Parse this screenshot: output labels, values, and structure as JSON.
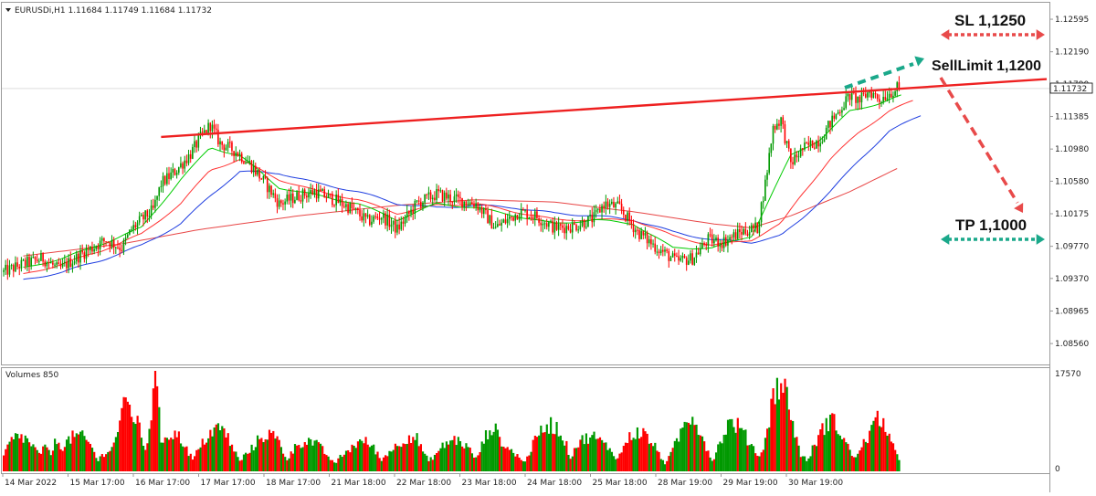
{
  "header": {
    "symbol_line": "EURUSDi,H1  1.11684 1.11749 1.11684 1.11732"
  },
  "volume_panel": {
    "label": "Volumes 850",
    "ytick_max": "17570",
    "ytick_min": "0"
  },
  "annotations": {
    "sl": "SL 1,1250",
    "sell_limit": "SellLimit 1,1200",
    "tp": "TP 1,1000"
  },
  "colors": {
    "bull": "#009900",
    "bear": "#ff0000",
    "ma_fast": "#00cc00",
    "ma_mid": "#ff3333",
    "ma_slow": "#1f3ee0",
    "ma_long": "#e84646",
    "trendline": "#ee2020",
    "sl_arrow": "#e84a4a",
    "tp_arrow": "#1aa88a"
  },
  "chart_data": {
    "type": "candlestick",
    "symbol": "EURUSDi",
    "timeframe": "H1",
    "current_price": "1.11732",
    "ylim": [
      1.083,
      1.128
    ],
    "y_ticks": [
      "1.12595",
      "1.12190",
      "1.11790",
      "1.11385",
      "1.10980",
      "1.10580",
      "1.10175",
      "1.09770",
      "1.09370",
      "1.08965",
      "1.08560"
    ],
    "y_tick_values": [
      1.12595,
      1.1219,
      1.1179,
      1.11385,
      1.1098,
      1.1058,
      1.10175,
      1.0977,
      1.0937,
      1.08965,
      1.0856
    ],
    "x_ticks": [
      "14 Mar 2022",
      "15 Mar 17:00",
      "16 Mar 17:00",
      "17 Mar 17:00",
      "18 Mar 17:00",
      "21 Mar 18:00",
      "22 Mar 18:00",
      "23 Mar 18:00",
      "24 Mar 18:00",
      "25 Mar 18:00",
      "28 Mar 19:00",
      "29 Mar 19:00",
      "30 Mar 19:00"
    ],
    "price_anchors": [
      [
        0,
        1.0945
      ],
      [
        10,
        1.0955
      ],
      [
        20,
        1.0962
      ],
      [
        28,
        1.0948
      ],
      [
        40,
        1.0968
      ],
      [
        52,
        1.0985
      ],
      [
        60,
        1.0975
      ],
      [
        65,
        1.0998
      ],
      [
        70,
        1.101
      ],
      [
        76,
        1.1022
      ],
      [
        80,
        1.1055
      ],
      [
        87,
        1.107
      ],
      [
        95,
        1.1092
      ],
      [
        100,
        1.1112
      ],
      [
        105,
        1.1128
      ],
      [
        110,
        1.1105
      ],
      [
        118,
        1.1095
      ],
      [
        125,
        1.108
      ],
      [
        133,
        1.1055
      ],
      [
        140,
        1.103
      ],
      [
        150,
        1.104
      ],
      [
        158,
        1.1045
      ],
      [
        168,
        1.1035
      ],
      [
        176,
        1.1025
      ],
      [
        185,
        1.1008
      ],
      [
        192,
        1.1015
      ],
      [
        200,
        1.0998
      ],
      [
        210,
        1.103
      ],
      [
        220,
        1.1042
      ],
      [
        230,
        1.1035
      ],
      [
        240,
        1.103
      ],
      [
        250,
        1.1
      ],
      [
        256,
        1.101
      ],
      [
        262,
        1.102
      ],
      [
        270,
        1.1015
      ],
      [
        280,
        1.1
      ],
      [
        290,
        1.1002
      ],
      [
        300,
        1.1012
      ],
      [
        305,
        1.103
      ],
      [
        313,
        1.1025
      ],
      [
        322,
        1.0995
      ],
      [
        332,
        1.0975
      ],
      [
        342,
        1.0958
      ],
      [
        350,
        1.0962
      ],
      [
        358,
        1.0985
      ],
      [
        365,
        1.0982
      ],
      [
        375,
        1.0995
      ],
      [
        383,
        1.1
      ],
      [
        387,
        1.1055
      ],
      [
        391,
        1.1125
      ],
      [
        395,
        1.1135
      ],
      [
        400,
        1.108
      ],
      [
        406,
        1.1098
      ],
      [
        415,
        1.111
      ],
      [
        420,
        1.113
      ],
      [
        425,
        1.1148
      ],
      [
        430,
        1.1165
      ],
      [
        435,
        1.1158
      ],
      [
        440,
        1.117
      ],
      [
        445,
        1.116
      ],
      [
        450,
        1.1168
      ],
      [
        454,
        1.1173
      ]
    ],
    "ma_fast_anchors": [
      [
        10,
        1.095
      ],
      [
        30,
        1.0962
      ],
      [
        50,
        1.098
      ],
      [
        70,
        1.1
      ],
      [
        90,
        1.106
      ],
      [
        105,
        1.11
      ],
      [
        120,
        1.109
      ],
      [
        140,
        1.105
      ],
      [
        160,
        1.104
      ],
      [
        180,
        1.103
      ],
      [
        200,
        1.101
      ],
      [
        220,
        1.103
      ],
      [
        240,
        1.1025
      ],
      [
        260,
        1.1015
      ],
      [
        280,
        1.1005
      ],
      [
        300,
        1.101
      ],
      [
        320,
        1.1005
      ],
      [
        340,
        1.0975
      ],
      [
        360,
        1.0975
      ],
      [
        380,
        1.099
      ],
      [
        390,
        1.104
      ],
      [
        400,
        1.109
      ],
      [
        415,
        1.111
      ],
      [
        430,
        1.1145
      ],
      [
        445,
        1.1155
      ],
      [
        457,
        1.1165
      ]
    ],
    "ma_mid_anchors": [
      [
        10,
        1.0942
      ],
      [
        30,
        1.0955
      ],
      [
        50,
        1.0972
      ],
      [
        70,
        1.0992
      ],
      [
        90,
        1.103
      ],
      [
        105,
        1.1072
      ],
      [
        120,
        1.1085
      ],
      [
        140,
        1.106
      ],
      [
        160,
        1.1045
      ],
      [
        180,
        1.1035
      ],
      [
        200,
        1.1018
      ],
      [
        220,
        1.1028
      ],
      [
        240,
        1.103
      ],
      [
        260,
        1.102
      ],
      [
        280,
        1.101
      ],
      [
        300,
        1.101
      ],
      [
        320,
        1.101
      ],
      [
        340,
        1.099
      ],
      [
        360,
        1.0978
      ],
      [
        380,
        1.0985
      ],
      [
        395,
        1.1005
      ],
      [
        405,
        1.104
      ],
      [
        420,
        1.1085
      ],
      [
        435,
        1.112
      ],
      [
        450,
        1.1145
      ],
      [
        462,
        1.1158
      ]
    ],
    "ma_slow_anchors": [
      [
        10,
        1.0935
      ],
      [
        30,
        1.0945
      ],
      [
        50,
        1.096
      ],
      [
        70,
        1.0978
      ],
      [
        90,
        1.1005
      ],
      [
        105,
        1.104
      ],
      [
        120,
        1.107
      ],
      [
        140,
        1.1068
      ],
      [
        160,
        1.1055
      ],
      [
        180,
        1.1045
      ],
      [
        200,
        1.103
      ],
      [
        220,
        1.1025
      ],
      [
        240,
        1.1028
      ],
      [
        260,
        1.1025
      ],
      [
        280,
        1.1018
      ],
      [
        300,
        1.1015
      ],
      [
        320,
        1.101
      ],
      [
        340,
        1.0995
      ],
      [
        360,
        1.0985
      ],
      [
        380,
        1.0982
      ],
      [
        395,
        1.099
      ],
      [
        405,
        1.101
      ],
      [
        420,
        1.1045
      ],
      [
        435,
        1.1085
      ],
      [
        450,
        1.112
      ],
      [
        466,
        1.114
      ]
    ],
    "ma_long_anchors": [
      [
        10,
        1.0965
      ],
      [
        60,
        1.098
      ],
      [
        100,
        1.0998
      ],
      [
        150,
        1.1015
      ],
      [
        200,
        1.1028
      ],
      [
        240,
        1.1035
      ],
      [
        280,
        1.1032
      ],
      [
        320,
        1.102
      ],
      [
        360,
        1.1005
      ],
      [
        380,
        1.1
      ],
      [
        400,
        1.1015
      ],
      [
        430,
        1.1045
      ],
      [
        455,
        1.1075
      ]
    ],
    "trendline": {
      "from": [
        80,
        1.1113
      ],
      "to": [
        530,
        1.1185
      ]
    },
    "volume_anchors": [
      [
        0,
        8000
      ],
      [
        10,
        5000
      ],
      [
        18,
        3000
      ],
      [
        25,
        9500
      ],
      [
        30,
        4500
      ],
      [
        45,
        6000
      ],
      [
        55,
        3800
      ],
      [
        62,
        10000
      ],
      [
        72,
        11000
      ],
      [
        77,
        17570
      ],
      [
        80,
        5000
      ],
      [
        90,
        6000
      ],
      [
        100,
        5500
      ],
      [
        112,
        6500
      ],
      [
        125,
        4000
      ],
      [
        140,
        6500
      ],
      [
        150,
        5000
      ],
      [
        160,
        4000
      ],
      [
        175,
        3500
      ],
      [
        190,
        5500
      ],
      [
        200,
        4000
      ],
      [
        210,
        6000
      ],
      [
        220,
        4000
      ],
      [
        235,
        5000
      ],
      [
        247,
        7500
      ],
      [
        255,
        3500
      ],
      [
        265,
        4500
      ],
      [
        275,
        6500
      ],
      [
        285,
        8000
      ],
      [
        295,
        5500
      ],
      [
        305,
        4500
      ],
      [
        315,
        6500
      ],
      [
        325,
        5500
      ],
      [
        338,
        4000
      ],
      [
        350,
        8500
      ],
      [
        360,
        5500
      ],
      [
        368,
        7500
      ],
      [
        378,
        5800
      ],
      [
        385,
        7000
      ],
      [
        392,
        13500
      ],
      [
        397,
        12000
      ],
      [
        405,
        4500
      ],
      [
        420,
        7500
      ],
      [
        428,
        6500
      ],
      [
        438,
        5500
      ],
      [
        446,
        8000
      ],
      [
        455,
        4000
      ]
    ]
  }
}
